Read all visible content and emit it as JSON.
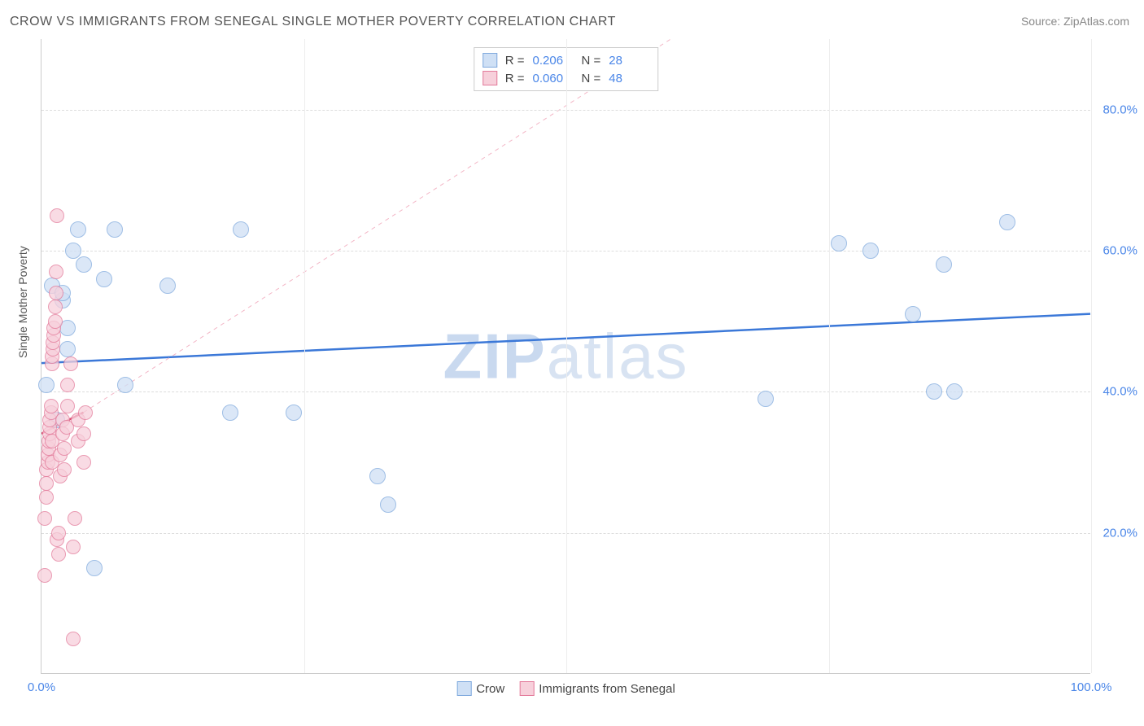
{
  "title": "CROW VS IMMIGRANTS FROM SENEGAL SINGLE MOTHER POVERTY CORRELATION CHART",
  "source_label": "Source: ",
  "source_name": "ZipAtlas.com",
  "ylabel": "Single Mother Poverty",
  "watermark_a": "ZIP",
  "watermark_b": "atlas",
  "chart": {
    "type": "scatter",
    "xlim": [
      0,
      100
    ],
    "ylim": [
      0,
      90
    ],
    "x_ticks": [
      {
        "pos": 0,
        "label": "0.0%"
      },
      {
        "pos": 100,
        "label": "100.0%"
      }
    ],
    "x_vlines": [
      25,
      50,
      75,
      100
    ],
    "y_ticks": [
      {
        "pos": 20,
        "label": "20.0%"
      },
      {
        "pos": 40,
        "label": "40.0%"
      },
      {
        "pos": 60,
        "label": "60.0%"
      },
      {
        "pos": 80,
        "label": "80.0%"
      }
    ],
    "background_color": "#ffffff",
    "grid_color": "#dddddd",
    "series": [
      {
        "name": "Crow",
        "marker_radius": 10,
        "fill": "#cfe0f5",
        "stroke": "#7fa9dd",
        "fill_opacity": 0.75,
        "R": "0.206",
        "N": "28",
        "trend": {
          "x1": 0,
          "y1": 44,
          "x2": 100,
          "y2": 51,
          "color": "#3b78d8",
          "width": 2.5,
          "dash": "none"
        },
        "points": [
          [
            0.5,
            41
          ],
          [
            1,
            55
          ],
          [
            1.5,
            36
          ],
          [
            2,
            53
          ],
          [
            2,
            54
          ],
          [
            2.5,
            46
          ],
          [
            2.5,
            49
          ],
          [
            3,
            60
          ],
          [
            3.5,
            63
          ],
          [
            4,
            58
          ],
          [
            5,
            15
          ],
          [
            6,
            56
          ],
          [
            7,
            63
          ],
          [
            8,
            41
          ],
          [
            12,
            55
          ],
          [
            18,
            37
          ],
          [
            19,
            63
          ],
          [
            24,
            37
          ],
          [
            32,
            28
          ],
          [
            33,
            24
          ],
          [
            69,
            39
          ],
          [
            76,
            61
          ],
          [
            79,
            60
          ],
          [
            83,
            51
          ],
          [
            85,
            40
          ],
          [
            86,
            58
          ],
          [
            87,
            40
          ],
          [
            92,
            64
          ]
        ]
      },
      {
        "name": "Immigrants from Senegal",
        "marker_radius": 9,
        "fill": "#f7d0db",
        "stroke": "#e37a9a",
        "fill_opacity": 0.75,
        "R": "0.060",
        "N": "48",
        "trend": {
          "x1": 0,
          "y1": 34,
          "x2": 4,
          "y2": 37,
          "color": "#d94a6f",
          "width": 2.5,
          "dash": "none"
        },
        "trend_ext": {
          "x1": 4,
          "y1": 37,
          "x2": 60,
          "y2": 90,
          "color": "#f3b6c6",
          "width": 1,
          "dash": "5,5"
        },
        "points": [
          [
            0.3,
            14
          ],
          [
            0.3,
            22
          ],
          [
            0.5,
            25
          ],
          [
            0.5,
            27
          ],
          [
            0.5,
            29
          ],
          [
            0.6,
            30
          ],
          [
            0.6,
            31
          ],
          [
            0.7,
            32
          ],
          [
            0.7,
            33
          ],
          [
            0.8,
            34
          ],
          [
            0.8,
            35
          ],
          [
            0.8,
            36
          ],
          [
            0.9,
            37
          ],
          [
            0.9,
            38
          ],
          [
            1.0,
            30
          ],
          [
            1.0,
            33
          ],
          [
            1.0,
            44
          ],
          [
            1.0,
            45
          ],
          [
            1.1,
            46
          ],
          [
            1.1,
            47
          ],
          [
            1.2,
            48
          ],
          [
            1.2,
            49
          ],
          [
            1.3,
            50
          ],
          [
            1.3,
            52
          ],
          [
            1.4,
            54
          ],
          [
            1.4,
            57
          ],
          [
            1.5,
            65
          ],
          [
            1.5,
            19
          ],
          [
            1.6,
            20
          ],
          [
            1.6,
            17
          ],
          [
            1.8,
            28
          ],
          [
            1.8,
            31
          ],
          [
            2.0,
            34
          ],
          [
            2.0,
            36
          ],
          [
            2.2,
            29
          ],
          [
            2.2,
            32
          ],
          [
            2.4,
            35
          ],
          [
            2.5,
            38
          ],
          [
            2.5,
            41
          ],
          [
            2.8,
            44
          ],
          [
            3.0,
            18
          ],
          [
            3.0,
            5
          ],
          [
            3.2,
            22
          ],
          [
            3.5,
            33
          ],
          [
            3.5,
            36
          ],
          [
            4.0,
            30
          ],
          [
            4.0,
            34
          ],
          [
            4.2,
            37
          ]
        ]
      }
    ]
  },
  "legend_bottom": [
    {
      "label": "Crow",
      "fill": "#cfe0f5",
      "stroke": "#7fa9dd"
    },
    {
      "label": "Immigrants from Senegal",
      "fill": "#f7d0db",
      "stroke": "#e37a9a"
    }
  ]
}
